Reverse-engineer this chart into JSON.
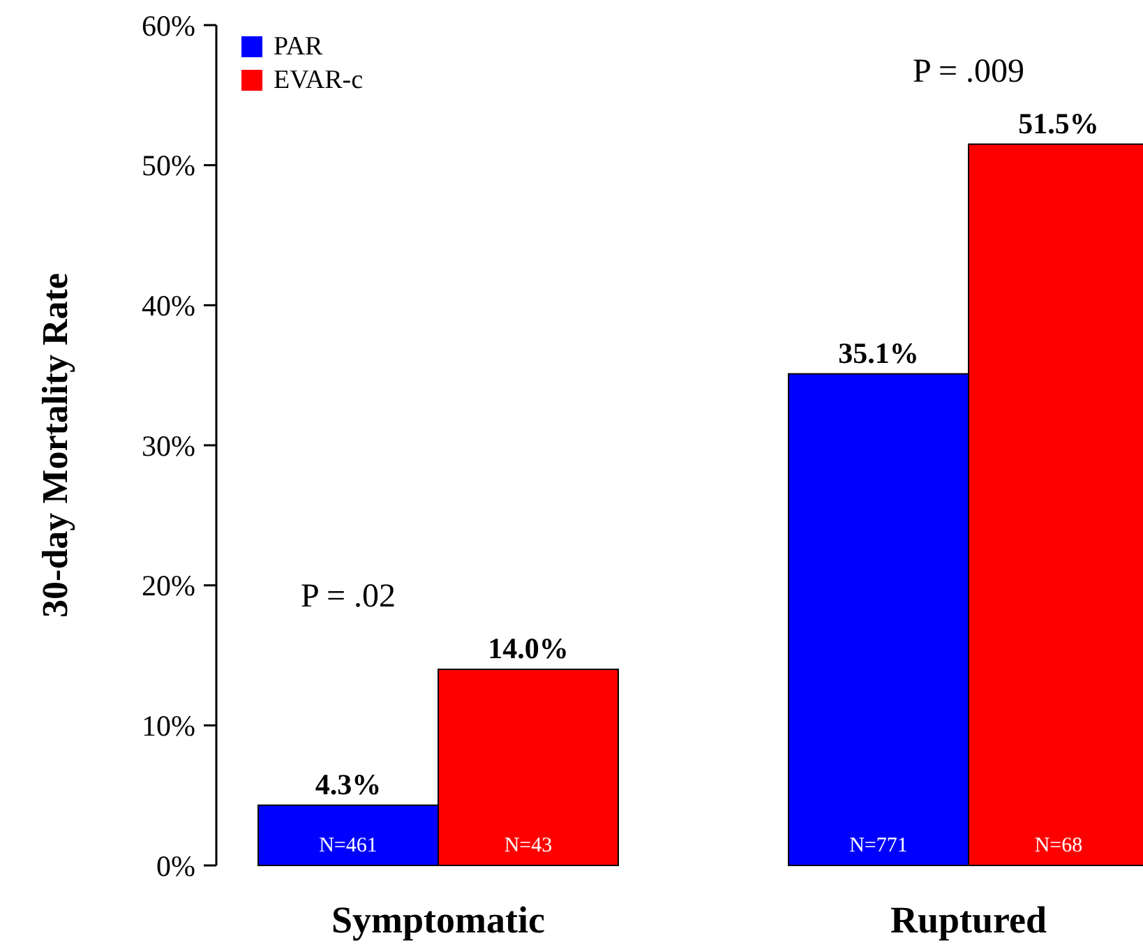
{
  "chart_data": {
    "type": "bar",
    "ylabel": "30-day Mortality Rate",
    "categories": [
      "Symptomatic",
      "Ruptured"
    ],
    "series": [
      {
        "name": "PAR",
        "color": "#0000ff",
        "values": [
          4.3,
          35.1
        ],
        "value_labels": [
          "4.3%",
          "35.1%"
        ]
      },
      {
        "name": "EVAR-c",
        "color": "#ff0000",
        "values": [
          14.0,
          51.5
        ],
        "value_labels": [
          "14.0%",
          "51.5%"
        ]
      }
    ],
    "ylim": [
      0,
      60
    ],
    "yticks": [
      {
        "value": 0,
        "label": "0%"
      },
      {
        "value": 10,
        "label": "10%"
      },
      {
        "value": 20,
        "label": "20%"
      },
      {
        "value": 30,
        "label": "30%"
      },
      {
        "value": 40,
        "label": "40%"
      },
      {
        "value": 50,
        "label": "50%"
      },
      {
        "value": 60,
        "label": "60%"
      }
    ],
    "legend": "top left",
    "grid": false,
    "annotations": [
      "P = .02",
      "P = .009",
      "N=461",
      "N=43",
      "N=771",
      "N=68"
    ]
  }
}
